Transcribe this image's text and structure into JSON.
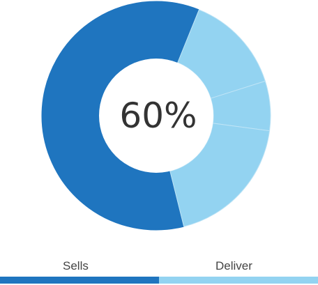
{
  "chart_data": {
    "type": "pie",
    "variant": "donut",
    "center_label": "60%",
    "slices": [
      {
        "name": "Sells",
        "value": 60,
        "color": "#1f75bf"
      },
      {
        "name": "Deliver",
        "value": 14,
        "color": "#93d3f1"
      },
      {
        "name": "Deliver",
        "value": 7,
        "color": "#93d3f1"
      },
      {
        "name": "Deliver",
        "value": 19,
        "color": "#93d3f1"
      }
    ],
    "legend": [
      {
        "label": "Sells",
        "color": "#1f75bf"
      },
      {
        "label": "Deliver",
        "color": "#93d3f1"
      }
    ],
    "legend_placement": "bottom",
    "slice_separator_color": "#bfe4f6"
  }
}
